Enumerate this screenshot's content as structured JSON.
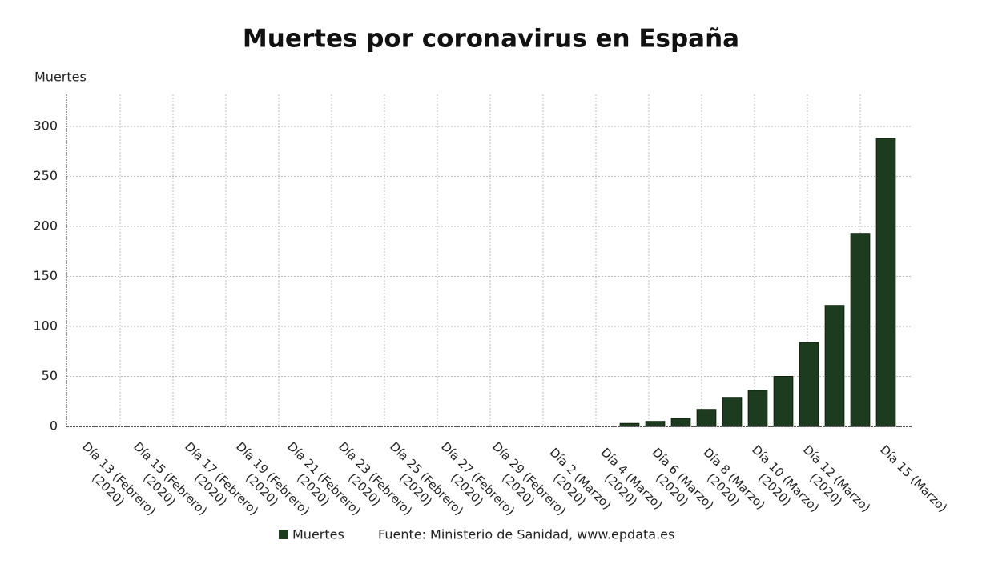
{
  "chart_data": {
    "type": "bar",
    "title": "Muertes por coronavirus en España",
    "y_label": "Muertes",
    "source": "Fuente: Ministerio de Sanidad, www.epdata.es",
    "categories": [
      "Día 13 (Febrero) (2020)",
      null,
      "Día 15 (Febrero) (2020)",
      null,
      "Día 17 (Febrero) (2020)",
      null,
      "Día 19 (Febrero) (2020)",
      null,
      "Día 21 (Febrero) (2020)",
      null,
      "Día 23 (Febrero) (2020)",
      null,
      "Día 25 (Febrero) (2020)",
      null,
      "Día 27 (Febrero) (2020)",
      null,
      "Día 29 (Febrero) (2020)",
      null,
      "Día 2 (Marzo) (2020)",
      null,
      "Día 4 (Marzo) (2020)",
      null,
      "Día 6 (Marzo) (2020)",
      null,
      "Día 8 (Marzo) (2020)",
      null,
      "Día 10 (Marzo) (2020)",
      null,
      "Día 12 (Marzo) (2020)",
      null,
      null,
      "Día 15 (Marzo)"
    ],
    "series": [
      {
        "name": "Muertes",
        "color": "#1d3b1e",
        "values": [
          0,
          0,
          0,
          0,
          0,
          0,
          0,
          0,
          0,
          0,
          0,
          0,
          0,
          0,
          0,
          0,
          0,
          0,
          0,
          0,
          0,
          3,
          5,
          8,
          17,
          29,
          36,
          50,
          84,
          121,
          193,
          288
        ]
      }
    ],
    "ylim": [
      0,
      332
    ],
    "yticks": [
      0,
      50,
      100,
      150,
      200,
      250,
      300
    ],
    "grid": true
  }
}
